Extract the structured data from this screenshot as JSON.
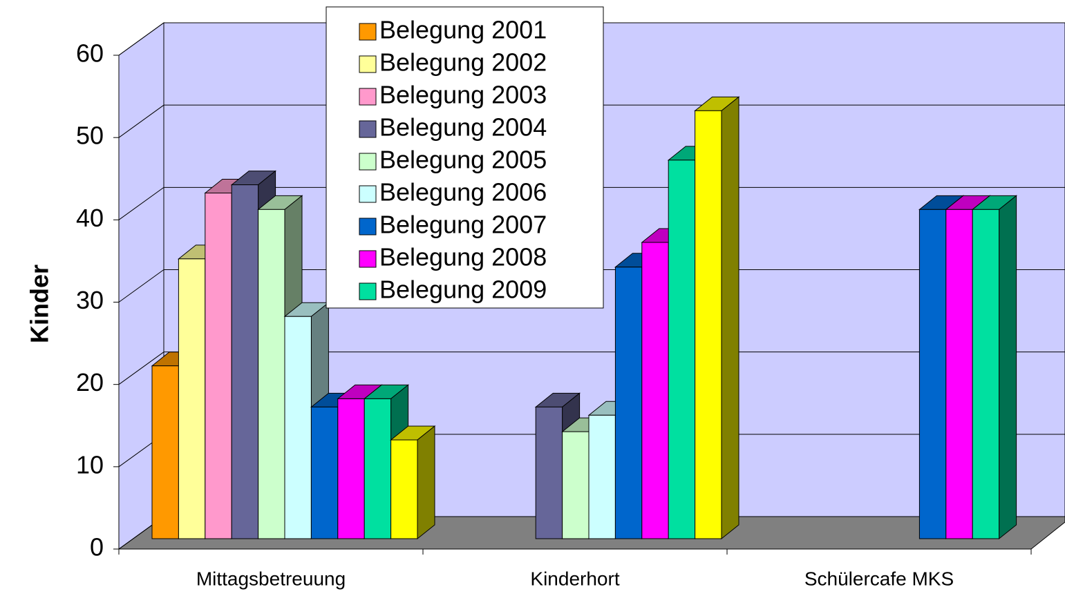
{
  "chart_data": {
    "type": "bar3d",
    "y_label": "Kinder",
    "categories": [
      "Mittagsbetreuung",
      "Kinderhort",
      "Schülercafe MKS"
    ],
    "ylim": [
      0,
      60
    ],
    "yticks": [
      0,
      10,
      20,
      30,
      40,
      50,
      60
    ],
    "grid": true,
    "wall_color": "#ccccff",
    "floor_color": "#808080",
    "series": [
      {
        "name": "Belegung 2001",
        "color": "#ff9900",
        "values": [
          21,
          null,
          null
        ]
      },
      {
        "name": "Belegung 2002",
        "color": "#ffff99",
        "values": [
          34,
          null,
          null
        ]
      },
      {
        "name": "Belegung 2003",
        "color": "#ff99cc",
        "values": [
          42,
          null,
          null
        ]
      },
      {
        "name": "Belegung 2004",
        "color": "#666699",
        "values": [
          43,
          16,
          null
        ]
      },
      {
        "name": "Belegung 2005",
        "color": "#ccffcc",
        "values": [
          40,
          13,
          null
        ]
      },
      {
        "name": "Belegung 2006",
        "color": "#ccffff",
        "values": [
          27,
          15,
          null
        ]
      },
      {
        "name": "Belegung 2007",
        "color": "#0066cc",
        "values": [
          16,
          33,
          40
        ]
      },
      {
        "name": "Belegung 2008",
        "color": "#ff00ff",
        "values": [
          17,
          36,
          40
        ]
      },
      {
        "name": "Belegung 2009",
        "color": "#00e0a0",
        "values": [
          17,
          46,
          40
        ]
      },
      {
        "color": "#ffff00",
        "values": [
          12,
          52,
          null
        ]
      }
    ]
  }
}
